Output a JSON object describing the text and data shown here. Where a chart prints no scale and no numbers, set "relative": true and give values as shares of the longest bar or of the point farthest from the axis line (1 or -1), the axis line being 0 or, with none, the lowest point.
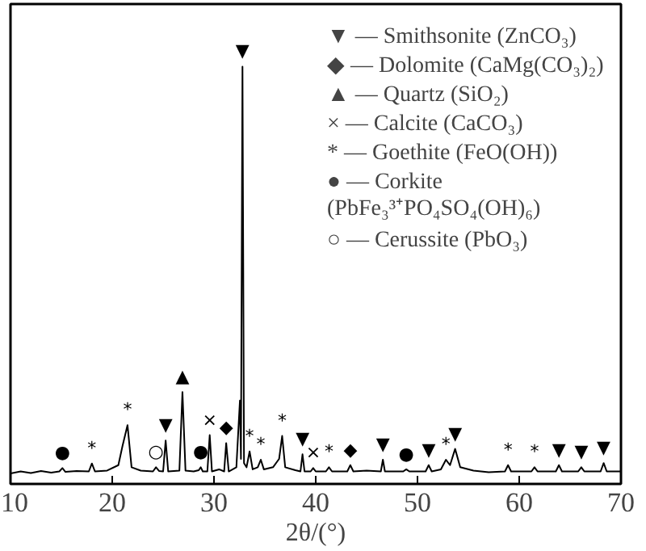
{
  "chart_data": {
    "type": "line",
    "relative": true,
    "xlabel": "2θ/(°)",
    "xlim": [
      10,
      70
    ],
    "xticks": [
      10,
      20,
      30,
      40,
      50,
      60,
      70
    ],
    "grid": false,
    "marker": "none",
    "line_style": "solid",
    "series": [
      {
        "color": "#000000",
        "x": [
          10,
          11,
          12,
          13,
          14,
          14.8,
          15.1,
          15.4,
          16.5,
          17.7,
          18.0,
          18.3,
          19.5,
          20.6,
          21.0,
          21.5,
          21.9,
          22.8,
          24.0,
          24.3,
          24.6,
          25.0,
          25.25,
          25.5,
          26.6,
          26.9,
          27.2,
          28.0,
          28.5,
          28.7,
          28.9,
          29.35,
          29.58,
          29.8,
          30.5,
          31.0,
          31.2,
          31.45,
          32.2,
          32.55,
          32.65,
          32.8,
          32.95,
          33.2,
          33.5,
          33.8,
          34.3,
          34.6,
          34.9,
          35.8,
          36.4,
          36.7,
          37.0,
          38.0,
          38.5,
          38.7,
          38.9,
          39.5,
          39.75,
          40.0,
          41.0,
          41.3,
          41.6,
          43.1,
          43.4,
          43.7,
          45.0,
          46.4,
          46.6,
          46.8,
          48.6,
          48.9,
          49.2,
          50.8,
          51.1,
          51.4,
          52.3,
          52.8,
          53.2,
          53.7,
          54.2,
          55.5,
          57.0,
          58.6,
          58.9,
          59.2,
          61.2,
          61.5,
          61.8,
          63.6,
          63.9,
          64.2,
          65.8,
          66.1,
          66.4,
          68.0,
          68.3,
          68.6,
          70
        ],
        "values": [
          0.025,
          0.03,
          0.026,
          0.031,
          0.027,
          0.03,
          0.038,
          0.029,
          0.031,
          0.03,
          0.049,
          0.03,
          0.032,
          0.045,
          0.09,
          0.141,
          0.04,
          0.032,
          0.03,
          0.04,
          0.031,
          0.03,
          0.104,
          0.03,
          0.032,
          0.22,
          0.032,
          0.03,
          0.033,
          0.04,
          0.03,
          0.03,
          0.117,
          0.03,
          0.035,
          0.03,
          0.098,
          0.03,
          0.04,
          0.2,
          0.06,
          1.0,
          0.05,
          0.04,
          0.078,
          0.035,
          0.04,
          0.058,
          0.035,
          0.04,
          0.06,
          0.115,
          0.04,
          0.033,
          0.03,
          0.071,
          0.03,
          0.03,
          0.038,
          0.03,
          0.03,
          0.04,
          0.03,
          0.03,
          0.045,
          0.03,
          0.032,
          0.03,
          0.058,
          0.03,
          0.03,
          0.035,
          0.03,
          0.03,
          0.045,
          0.03,
          0.035,
          0.058,
          0.045,
          0.084,
          0.04,
          0.032,
          0.028,
          0.03,
          0.045,
          0.03,
          0.03,
          0.04,
          0.03,
          0.03,
          0.045,
          0.03,
          0.03,
          0.04,
          0.03,
          0.03,
          0.05,
          0.03,
          0.03
        ]
      }
    ],
    "annotations": [
      {
        "text": "●",
        "x": 15.1,
        "y": 0.038
      },
      {
        "text": "*",
        "x": 18.0,
        "y": 0.049
      },
      {
        "text": "*",
        "x": 21.5,
        "y": 0.141
      },
      {
        "text": "○",
        "x": 24.3,
        "y": 0.04
      },
      {
        "text": "▼",
        "x": 25.25,
        "y": 0.104
      },
      {
        "text": "▲",
        "x": 26.9,
        "y": 0.22
      },
      {
        "text": "●",
        "x": 28.7,
        "y": 0.04
      },
      {
        "text": "×",
        "x": 29.58,
        "y": 0.117
      },
      {
        "text": "◆",
        "x": 31.2,
        "y": 0.098
      },
      {
        "text": "▼",
        "x": 32.8,
        "y": 1.0
      },
      {
        "text": "*",
        "x": 33.5,
        "y": 0.078
      },
      {
        "text": "*",
        "x": 34.6,
        "y": 0.058
      },
      {
        "text": "*",
        "x": 36.7,
        "y": 0.115
      },
      {
        "text": "▼",
        "x": 38.7,
        "y": 0.071
      },
      {
        "text": "×",
        "x": 39.75,
        "y": 0.038
      },
      {
        "text": "*",
        "x": 41.3,
        "y": 0.04
      },
      {
        "text": "◆",
        "x": 43.4,
        "y": 0.045
      },
      {
        "text": "▼",
        "x": 46.6,
        "y": 0.058
      },
      {
        "text": "●",
        "x": 48.9,
        "y": 0.035
      },
      {
        "text": "▼",
        "x": 51.1,
        "y": 0.045
      },
      {
        "text": "*",
        "x": 52.8,
        "y": 0.058
      },
      {
        "text": "▼",
        "x": 53.7,
        "y": 0.084
      },
      {
        "text": "*",
        "x": 58.9,
        "y": 0.045
      },
      {
        "text": "*",
        "x": 61.5,
        "y": 0.04
      },
      {
        "text": "▼",
        "x": 63.9,
        "y": 0.045
      },
      {
        "text": "▼",
        "x": 66.1,
        "y": 0.04
      },
      {
        "text": "▼",
        "x": 68.3,
        "y": 0.05
      },
      "▼ — Smithsonite (ZnCO₃)",
      "◆ — Dolomite (CaMg(CO₃)₂)",
      "▲ — Quartz (SiO₂)",
      "× — Calcite (CaCO₃)",
      "* — Goethite (FeO(OH))",
      "● — Corkite\n(PbFe₃³⁺PO₄SO₄(OH)₆)",
      "○ — Cerussite (PbO₃)"
    ]
  }
}
